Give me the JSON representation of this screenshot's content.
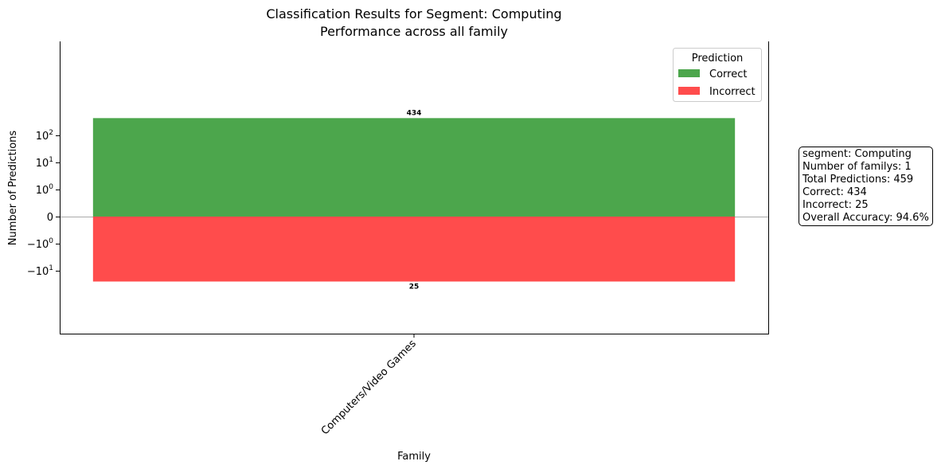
{
  "chart_data": {
    "type": "bar",
    "title": "Classification Results for Segment: Computing",
    "subtitle": "Performance across all family",
    "xlabel": "Family",
    "ylabel": "Number of Predictions",
    "yscale": "symlog",
    "categories": [
      "Computers/Video Games"
    ],
    "series": [
      {
        "name": "Correct",
        "values": [
          434
        ],
        "color": "#4ca64c"
      },
      {
        "name": "Incorrect",
        "values": [
          -25
        ],
        "color": "#ff4c4c"
      }
    ],
    "data_labels": [
      "434",
      "25"
    ],
    "y_ticks": [
      {
        "value": 100,
        "base": "10",
        "exp": "2"
      },
      {
        "value": 10,
        "base": "10",
        "exp": "1"
      },
      {
        "value": 1,
        "base": "10",
        "exp": "0"
      },
      {
        "value": 0,
        "text": "0"
      },
      {
        "value": -1,
        "base": "−10",
        "exp": "0"
      },
      {
        "value": -10,
        "base": "−10",
        "exp": "1"
      }
    ],
    "legend": {
      "title": "Prediction",
      "position": "top-right"
    },
    "grid": false
  },
  "stats": [
    "segment: Computing",
    "Number of familys: 1",
    "Total Predictions: 459",
    "Correct: 434",
    "Incorrect: 25",
    "Overall Accuracy: 94.6%"
  ]
}
